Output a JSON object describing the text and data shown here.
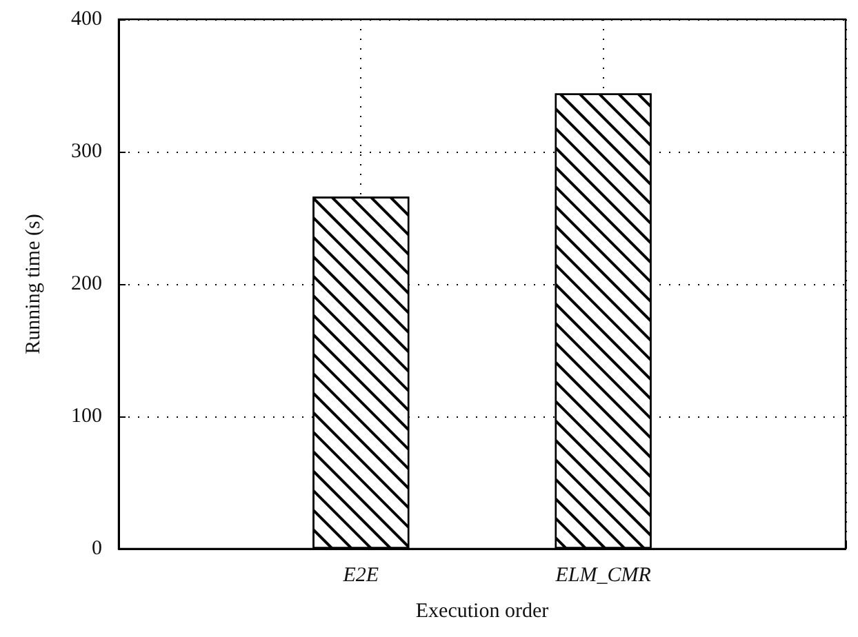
{
  "chart_data": {
    "type": "bar",
    "xlabel": "Execution order",
    "ylabel": "Running time (s)",
    "categories": [
      "E2E",
      "ELM_CMR"
    ],
    "values": [
      266,
      344
    ],
    "color": "#000000",
    "ylim": [
      0,
      400
    ],
    "yticks": [
      0,
      100,
      200,
      300,
      400
    ],
    "grid": true
  }
}
